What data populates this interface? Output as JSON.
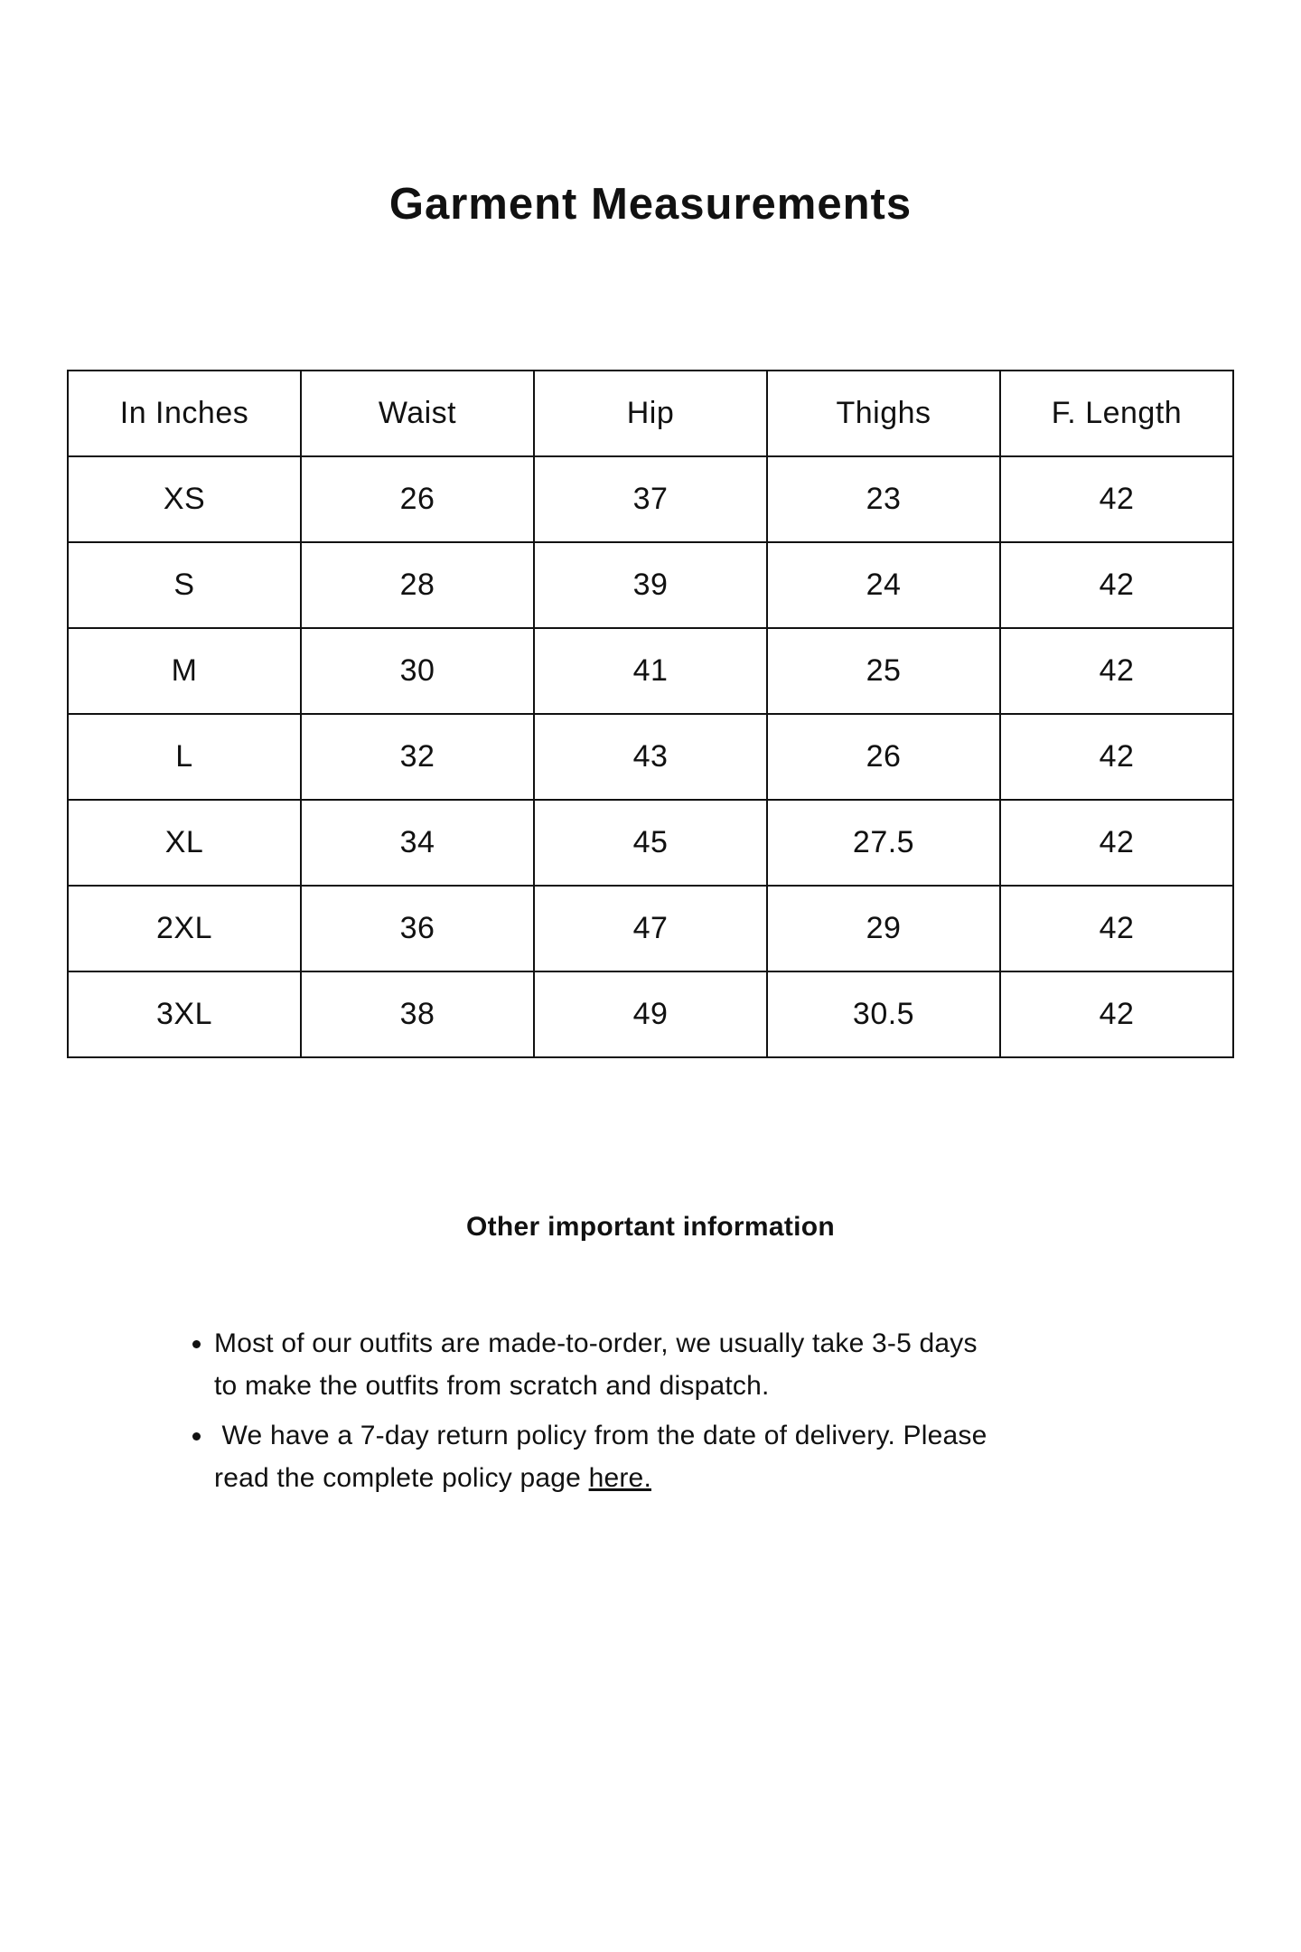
{
  "page": {
    "title": "Garment Measurements",
    "section_heading": "Other important information"
  },
  "colors": {
    "background": "#ffffff",
    "text": "#111111",
    "table_border": "#111111"
  },
  "table": {
    "headers": [
      "In Inches",
      "Waist",
      "Hip",
      "Thighs",
      "F. Length"
    ],
    "rows": [
      [
        "XS",
        "26",
        "37",
        "23",
        "42"
      ],
      [
        "S",
        "28",
        "39",
        "24",
        "42"
      ],
      [
        "M",
        "30",
        "41",
        "25",
        "42"
      ],
      [
        "L",
        "32",
        "43",
        "26",
        "42"
      ],
      [
        "XL",
        "34",
        "45",
        "27.5",
        "42"
      ],
      [
        "2XL",
        "36",
        "47",
        "29",
        "42"
      ],
      [
        "3XL",
        "38",
        "49",
        "30.5",
        "42"
      ]
    ]
  },
  "notes": [
    {
      "text": "Most of our outfits are made-to-order, we usually take 3-5 days to make the outfits from scratch and dispatch."
    },
    {
      "text": " We have a 7-day return policy from the date of delivery. Please read the complete policy page ",
      "link_label": "here."
    }
  ]
}
